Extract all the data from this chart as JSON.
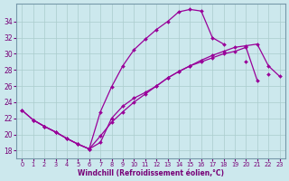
{
  "xlabel": "Windchill (Refroidissement éolien,°C)",
  "hours": [
    0,
    1,
    2,
    3,
    4,
    5,
    6,
    7,
    8,
    9,
    10,
    11,
    12,
    13,
    14,
    15,
    16,
    17,
    18,
    19,
    20,
    21,
    22,
    23
  ],
  "curve1": [
    23.0,
    21.8,
    21.0,
    20.3,
    19.5,
    18.8,
    18.2,
    22.8,
    25.9,
    28.5,
    30.5,
    31.8,
    33.0,
    34.0,
    35.2,
    35.5,
    35.3,
    32.0,
    31.2,
    null,
    29.0,
    null,
    27.5,
    null
  ],
  "curve2_x": [
    1,
    2,
    3,
    4,
    5,
    6,
    7,
    8,
    9,
    10,
    11,
    12,
    13,
    14,
    15,
    16,
    17,
    18,
    19,
    20,
    21
  ],
  "curve2_y": [
    21.8,
    21.0,
    20.3,
    19.5,
    18.8,
    18.2,
    19.0,
    22.0,
    23.5,
    24.5,
    25.2,
    26.0,
    27.0,
    27.8,
    28.5,
    29.0,
    29.5,
    30.0,
    30.3,
    30.8,
    26.7
  ],
  "curve3_x": [
    0,
    1,
    2,
    3,
    4,
    5,
    6,
    7,
    8,
    9,
    10,
    11,
    12,
    13,
    14,
    15,
    16,
    17,
    18,
    19,
    20,
    21,
    22,
    23
  ],
  "curve3_y": [
    23.0,
    21.8,
    21.0,
    20.3,
    19.5,
    18.8,
    18.2,
    19.8,
    21.5,
    22.8,
    24.0,
    25.0,
    26.0,
    27.0,
    27.8,
    28.5,
    29.2,
    29.8,
    30.3,
    30.8,
    31.0,
    31.2,
    28.5,
    27.2
  ],
  "ylim": [
    17.0,
    36.2
  ],
  "yticks": [
    18,
    20,
    22,
    24,
    26,
    28,
    30,
    32,
    34
  ],
  "xlim": [
    -0.5,
    23.5
  ],
  "xticks": [
    0,
    1,
    2,
    3,
    4,
    5,
    6,
    7,
    8,
    9,
    10,
    11,
    12,
    13,
    14,
    15,
    16,
    17,
    18,
    19,
    20,
    21,
    22,
    23
  ],
  "line_color": "#990099",
  "bg_color": "#cce8ed",
  "grid_color": "#aacccc",
  "marker": "D",
  "markersize": 2.0,
  "linewidth": 0.9,
  "tick_color": "#770077",
  "xlabel_fontsize": 5.5,
  "ytick_fontsize": 5.5,
  "xtick_fontsize": 4.8
}
